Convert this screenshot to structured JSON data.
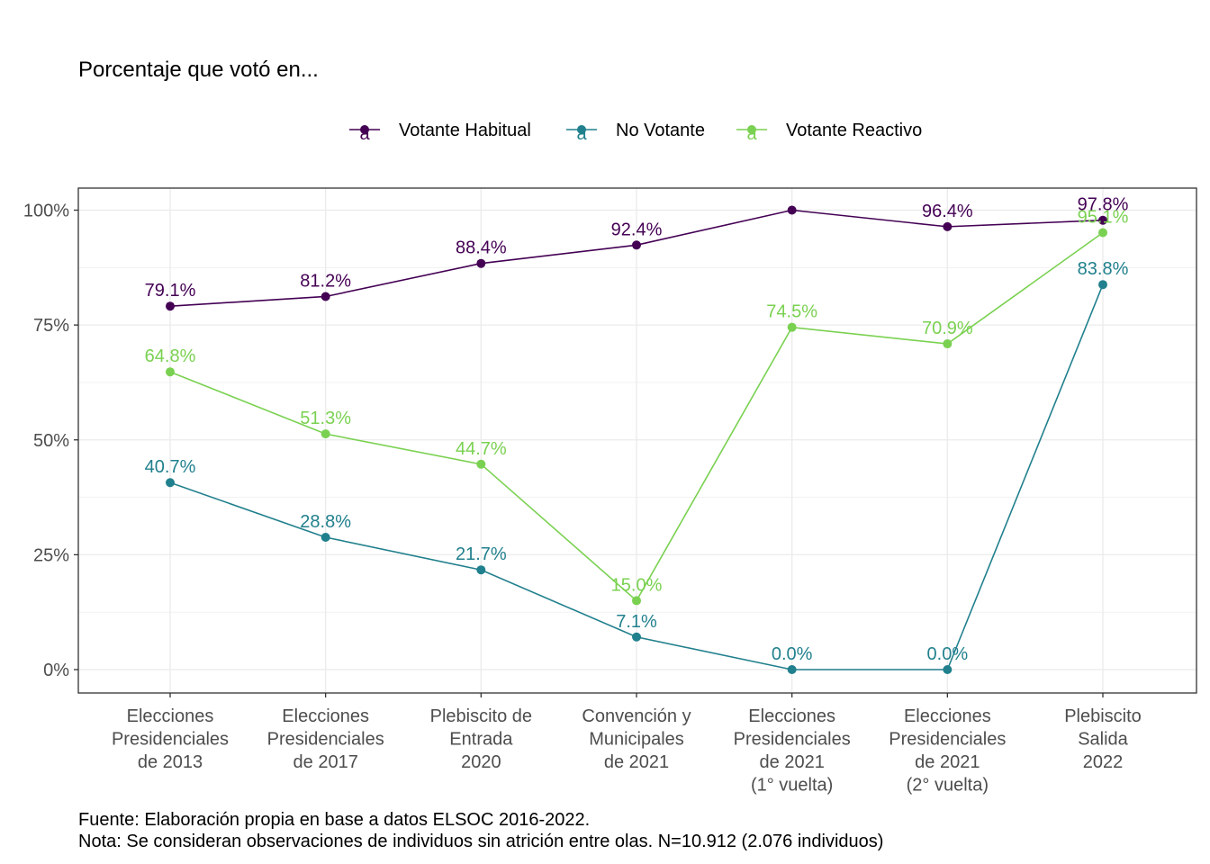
{
  "chart_data": {
    "type": "line",
    "title": "Porcentaje que votó en...",
    "xlabel": "",
    "ylabel": "",
    "categories": [
      [
        "Elecciones",
        "Presidenciales",
        "de 2013"
      ],
      [
        "Elecciones",
        "Presidenciales",
        "de 2017"
      ],
      [
        "Plebiscito de",
        "Entrada",
        "2020"
      ],
      [
        "Convención y",
        "Municipales",
        "de 2021"
      ],
      [
        "Elecciones",
        "Presidenciales",
        "de 2021",
        "(1° vuelta)"
      ],
      [
        "Elecciones",
        "Presidenciales",
        "de 2021",
        "(2° vuelta)"
      ],
      [
        "Plebiscito",
        "Salida",
        "2022"
      ]
    ],
    "ylim": [
      0,
      100
    ],
    "yticks": [
      0,
      25,
      50,
      75,
      100
    ],
    "ytick_labels": [
      "0%",
      "25%",
      "50%",
      "75%",
      "100%"
    ],
    "grid": true,
    "legend_position": "top",
    "legend_key_glyph": "a",
    "series": [
      {
        "name": "Votante Habitual",
        "color": "#440154",
        "values": [
          79.1,
          81.2,
          88.4,
          92.4,
          100.0,
          96.4,
          97.8
        ],
        "labels": [
          "79.1%",
          "81.2%",
          "88.4%",
          "92.4%",
          "",
          "96.4%",
          "97.8%"
        ]
      },
      {
        "name": "No Votante",
        "color": "#21808D",
        "values": [
          40.7,
          28.8,
          21.7,
          7.1,
          0.0,
          0.0,
          83.8
        ],
        "labels": [
          "40.7%",
          "28.8%",
          "21.7%",
          "7.1%",
          "0.0%",
          "0.0%",
          "83.8%"
        ]
      },
      {
        "name": "Votante Reactivo",
        "color": "#7AD151",
        "values": [
          64.8,
          51.3,
          44.7,
          15.0,
          74.5,
          70.9,
          95.1
        ],
        "labels": [
          "64.8%",
          "51.3%",
          "44.7%",
          "15.0%",
          "74.5%",
          "70.9%",
          "95.1%"
        ]
      }
    ],
    "caption": [
      "Fuente: Elaboración propia en base a datos ELSOC 2016-2022.",
      "Nota: Se consideran observaciones de individuos sin atrición entre olas. N=10.912 (2.076 individuos)"
    ]
  }
}
